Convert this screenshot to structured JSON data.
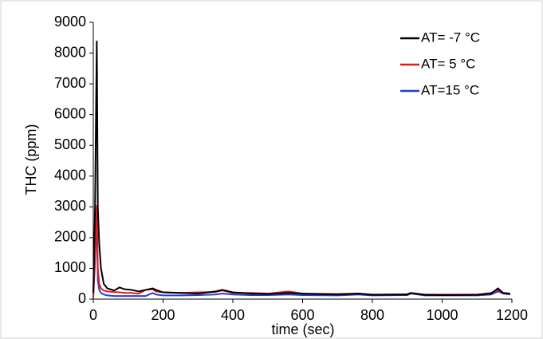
{
  "chart_data": {
    "type": "line",
    "x_label": "time (sec)",
    "y_label": "THC (ppm)",
    "x": [
      0,
      5,
      10,
      13,
      17,
      22,
      30,
      40,
      60,
      75,
      90,
      110,
      130,
      150,
      170,
      180,
      200,
      250,
      300,
      350,
      370,
      400,
      450,
      500,
      560,
      600,
      700,
      760,
      800,
      900,
      910,
      950,
      1000,
      1100,
      1140,
      1160,
      1175,
      1195
    ],
    "series": [
      {
        "name": "AT= -7 °C",
        "color": "#000000",
        "values": [
          200,
          3000,
          8400,
          3000,
          1800,
          1000,
          500,
          350,
          280,
          380,
          320,
          300,
          250,
          300,
          350,
          300,
          220,
          200,
          180,
          250,
          300,
          220,
          180,
          170,
          200,
          180,
          150,
          180,
          140,
          150,
          200,
          140,
          130,
          140,
          180,
          350,
          200,
          180
        ]
      },
      {
        "name": "AT= 5 °C",
        "color": "#e8161b",
        "values": [
          100,
          1500,
          3050,
          1000,
          500,
          350,
          280,
          250,
          230,
          220,
          200,
          200,
          180,
          300,
          320,
          250,
          220,
          200,
          220,
          230,
          280,
          200,
          200,
          180,
          250,
          180,
          170,
          180,
          150,
          160,
          200,
          150,
          150,
          150,
          200,
          300,
          200,
          170
        ]
      },
      {
        "name": "AT=15 °C",
        "color": "#1f3fd6",
        "values": [
          50,
          1200,
          2800,
          600,
          300,
          200,
          150,
          120,
          100,
          100,
          100,
          100,
          100,
          100,
          200,
          150,
          120,
          120,
          130,
          150,
          180,
          150,
          130,
          130,
          150,
          130,
          120,
          150,
          120,
          130,
          180,
          120,
          120,
          120,
          150,
          250,
          180,
          150
        ]
      }
    ],
    "xlim": [
      0,
      1200
    ],
    "xticks": [
      0,
      200,
      400,
      600,
      800,
      1000,
      1200
    ],
    "ylim": [
      0,
      9000
    ],
    "yticks": [
      0,
      1000,
      2000,
      3000,
      4000,
      5000,
      6000,
      7000,
      8000,
      9000
    ],
    "legend": "top-right"
  }
}
